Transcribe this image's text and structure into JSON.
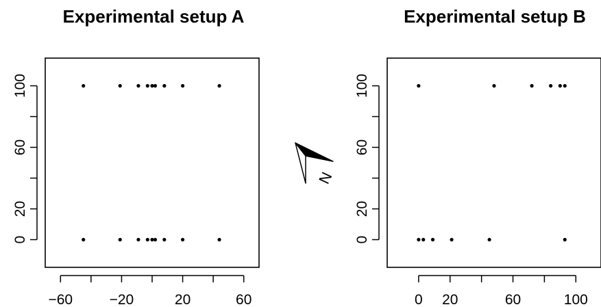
{
  "chart_data": [
    {
      "type": "scatter",
      "title": "Experimental setup A",
      "xlabel": "",
      "ylabel": "",
      "xlim": [
        -70,
        70
      ],
      "ylim": [
        -18,
        118
      ],
      "xticks": [
        -60,
        -20,
        20,
        60
      ],
      "xticks_minor": [
        -40,
        0,
        40
      ],
      "yticks": [
        0,
        20,
        60,
        100
      ],
      "yticks_minor": [
        40,
        80
      ],
      "grid": false,
      "points": [
        {
          "x": -45,
          "y": 100
        },
        {
          "x": -21,
          "y": 100
        },
        {
          "x": -9,
          "y": 100
        },
        {
          "x": -3,
          "y": 100
        },
        {
          "x": 0,
          "y": 100
        },
        {
          "x": 2,
          "y": 100
        },
        {
          "x": 8,
          "y": 100
        },
        {
          "x": 20,
          "y": 100
        },
        {
          "x": 44,
          "y": 100
        },
        {
          "x": -45,
          "y": 0
        },
        {
          "x": -21,
          "y": 0
        },
        {
          "x": -9,
          "y": 0
        },
        {
          "x": -3,
          "y": 0
        },
        {
          "x": 0,
          "y": 0
        },
        {
          "x": 2,
          "y": 0
        },
        {
          "x": 8,
          "y": 0
        },
        {
          "x": 20,
          "y": 0
        },
        {
          "x": 44,
          "y": 0
        }
      ]
    },
    {
      "type": "scatter",
      "title": "Experimental setup B",
      "xlabel": "",
      "ylabel": "",
      "xlim": [
        -20,
        116
      ],
      "ylim": [
        -18,
        118
      ],
      "xticks": [
        0,
        20,
        60,
        100
      ],
      "xticks_minor": [
        40,
        80
      ],
      "yticks": [
        0,
        20,
        60,
        100
      ],
      "yticks_minor": [
        40,
        80
      ],
      "grid": false,
      "points": [
        {
          "x": 0,
          "y": 100
        },
        {
          "x": 48,
          "y": 100
        },
        {
          "x": 72,
          "y": 100
        },
        {
          "x": 84,
          "y": 100
        },
        {
          "x": 90,
          "y": 100
        },
        {
          "x": 93,
          "y": 100
        },
        {
          "x": 0,
          "y": 0
        },
        {
          "x": 3,
          "y": 0
        },
        {
          "x": 9,
          "y": 0
        },
        {
          "x": 21,
          "y": 0
        },
        {
          "x": 45,
          "y": 0
        },
        {
          "x": 93,
          "y": 0
        }
      ]
    }
  ],
  "north_arrow": {
    "label": "N",
    "icon": "north-arrow-icon"
  }
}
